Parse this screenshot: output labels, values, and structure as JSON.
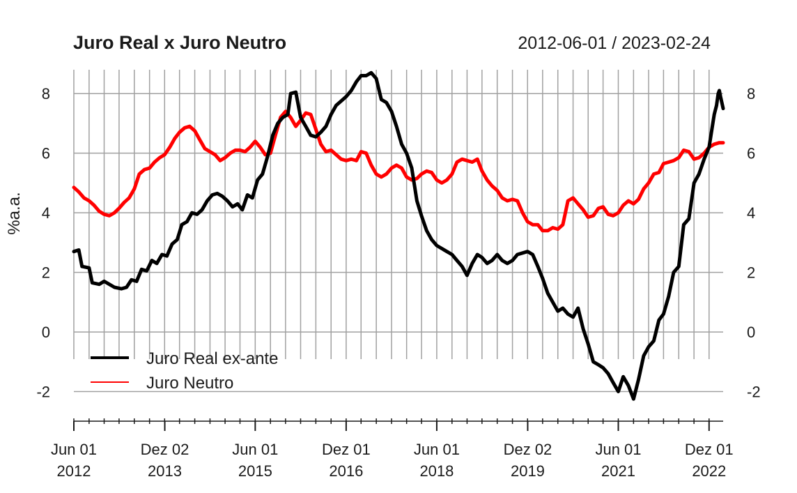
{
  "chart_data": {
    "type": "line",
    "title": "Juro Real x Juro Neutro",
    "date_range": "2012-06-01 / 2023-02-24",
    "ylabel": "%a.a.",
    "xlim": [
      "2012-06-01",
      "2023-02-24"
    ],
    "ylim": [
      -2.9,
      8.8
    ],
    "y_ticks": [
      -2,
      0,
      2,
      4,
      6,
      8
    ],
    "x_ticks": [
      {
        "date": "2012-06-01",
        "label": "Jun 01",
        "year": "2012"
      },
      {
        "date": "2013-12-02",
        "label": "Dez 02",
        "year": "2013"
      },
      {
        "date": "2015-06-01",
        "label": "Jun 01",
        "year": "2015"
      },
      {
        "date": "2016-12-01",
        "label": "Dez 01",
        "year": "2016"
      },
      {
        "date": "2018-06-01",
        "label": "Jun 01",
        "year": "2018"
      },
      {
        "date": "2019-12-02",
        "label": "Dez 02",
        "year": "2019"
      },
      {
        "date": "2021-06-01",
        "label": "Jun 01",
        "year": "2021"
      },
      {
        "date": "2022-12-01",
        "label": "Dez 01",
        "year": "2022"
      }
    ],
    "grid": true,
    "legend_position": "bottom-left",
    "series": [
      {
        "name": "Juro Real ex-ante",
        "color": "#000000",
        "points": [
          [
            "2012-06-01",
            2.7
          ],
          [
            "2012-07-01",
            2.75
          ],
          [
            "2012-07-20",
            2.2
          ],
          [
            "2012-09-01",
            2.15
          ],
          [
            "2012-09-20",
            1.65
          ],
          [
            "2012-11-01",
            1.6
          ],
          [
            "2012-12-01",
            1.7
          ],
          [
            "2013-01-01",
            1.6
          ],
          [
            "2013-02-01",
            1.5
          ],
          [
            "2013-03-15",
            1.45
          ],
          [
            "2013-04-15",
            1.5
          ],
          [
            "2013-05-15",
            1.75
          ],
          [
            "2013-06-15",
            1.7
          ],
          [
            "2013-07-15",
            2.1
          ],
          [
            "2013-08-15",
            2.05
          ],
          [
            "2013-09-15",
            2.4
          ],
          [
            "2013-10-15",
            2.3
          ],
          [
            "2013-11-15",
            2.6
          ],
          [
            "2013-12-15",
            2.55
          ],
          [
            "2014-01-15",
            2.95
          ],
          [
            "2014-02-15",
            3.1
          ],
          [
            "2014-03-15",
            3.6
          ],
          [
            "2014-04-15",
            3.7
          ],
          [
            "2014-05-15",
            4.0
          ],
          [
            "2014-06-15",
            3.95
          ],
          [
            "2014-07-15",
            4.1
          ],
          [
            "2014-08-15",
            4.4
          ],
          [
            "2014-09-15",
            4.6
          ],
          [
            "2014-10-15",
            4.65
          ],
          [
            "2014-11-15",
            4.55
          ],
          [
            "2014-12-15",
            4.4
          ],
          [
            "2015-01-15",
            4.2
          ],
          [
            "2015-02-15",
            4.3
          ],
          [
            "2015-03-15",
            4.1
          ],
          [
            "2015-04-15",
            4.6
          ],
          [
            "2015-05-15",
            4.5
          ],
          [
            "2015-06-15",
            5.1
          ],
          [
            "2015-07-15",
            5.3
          ],
          [
            "2015-08-15",
            5.9
          ],
          [
            "2015-09-15",
            6.6
          ],
          [
            "2015-10-15",
            7.0
          ],
          [
            "2015-11-15",
            7.2
          ],
          [
            "2015-12-15",
            7.3
          ],
          [
            "2016-01-01",
            8.0
          ],
          [
            "2016-02-01",
            8.05
          ],
          [
            "2016-03-01",
            7.2
          ],
          [
            "2016-04-01",
            6.9
          ],
          [
            "2016-05-01",
            6.6
          ],
          [
            "2016-06-01",
            6.55
          ],
          [
            "2016-07-01",
            6.7
          ],
          [
            "2016-08-01",
            6.9
          ],
          [
            "2016-09-01",
            7.3
          ],
          [
            "2016-10-01",
            7.6
          ],
          [
            "2016-11-01",
            7.75
          ],
          [
            "2016-12-01",
            7.9
          ],
          [
            "2017-01-01",
            8.1
          ],
          [
            "2017-02-01",
            8.4
          ],
          [
            "2017-03-01",
            8.6
          ],
          [
            "2017-04-01",
            8.6
          ],
          [
            "2017-05-01",
            8.7
          ],
          [
            "2017-06-01",
            8.5
          ],
          [
            "2017-07-01",
            7.8
          ],
          [
            "2017-08-01",
            7.7
          ],
          [
            "2017-09-01",
            7.4
          ],
          [
            "2017-10-01",
            6.9
          ],
          [
            "2017-11-01",
            6.3
          ],
          [
            "2017-12-01",
            6.0
          ],
          [
            "2018-01-01",
            5.5
          ],
          [
            "2018-02-01",
            4.4
          ],
          [
            "2018-03-01",
            3.9
          ],
          [
            "2018-04-01",
            3.4
          ],
          [
            "2018-05-01",
            3.1
          ],
          [
            "2018-06-01",
            2.9
          ],
          [
            "2018-07-01",
            2.8
          ],
          [
            "2018-08-01",
            2.7
          ],
          [
            "2018-09-01",
            2.6
          ],
          [
            "2018-10-01",
            2.4
          ],
          [
            "2018-11-01",
            2.2
          ],
          [
            "2018-12-01",
            1.9
          ],
          [
            "2019-01-01",
            2.3
          ],
          [
            "2019-02-01",
            2.6
          ],
          [
            "2019-03-01",
            2.5
          ],
          [
            "2019-04-01",
            2.3
          ],
          [
            "2019-05-01",
            2.4
          ],
          [
            "2019-06-01",
            2.6
          ],
          [
            "2019-07-01",
            2.4
          ],
          [
            "2019-08-01",
            2.3
          ],
          [
            "2019-09-01",
            2.4
          ],
          [
            "2019-10-01",
            2.6
          ],
          [
            "2019-11-01",
            2.65
          ],
          [
            "2019-12-01",
            2.7
          ],
          [
            "2020-01-01",
            2.6
          ],
          [
            "2020-02-01",
            2.2
          ],
          [
            "2020-03-01",
            1.8
          ],
          [
            "2020-04-01",
            1.3
          ],
          [
            "2020-05-01",
            1.0
          ],
          [
            "2020-06-01",
            0.7
          ],
          [
            "2020-07-01",
            0.8
          ],
          [
            "2020-08-01",
            0.6
          ],
          [
            "2020-09-01",
            0.5
          ],
          [
            "2020-10-01",
            0.8
          ],
          [
            "2020-11-01",
            0.1
          ],
          [
            "2020-12-01",
            -0.4
          ],
          [
            "2021-01-01",
            -1.0
          ],
          [
            "2021-02-01",
            -1.1
          ],
          [
            "2021-03-01",
            -1.2
          ],
          [
            "2021-04-01",
            -1.4
          ],
          [
            "2021-05-01",
            -1.7
          ],
          [
            "2021-06-01",
            -2.0
          ],
          [
            "2021-07-01",
            -1.5
          ],
          [
            "2021-08-01",
            -1.8
          ],
          [
            "2021-09-01",
            -2.25
          ],
          [
            "2021-10-01",
            -1.6
          ],
          [
            "2021-11-01",
            -0.8
          ],
          [
            "2021-12-01",
            -0.5
          ],
          [
            "2022-01-01",
            -0.3
          ],
          [
            "2022-02-01",
            0.4
          ],
          [
            "2022-03-01",
            0.6
          ],
          [
            "2022-04-01",
            1.2
          ],
          [
            "2022-05-01",
            2.0
          ],
          [
            "2022-06-01",
            2.2
          ],
          [
            "2022-07-01",
            3.6
          ],
          [
            "2022-08-01",
            3.8
          ],
          [
            "2022-09-01",
            5.0
          ],
          [
            "2022-10-01",
            5.3
          ],
          [
            "2022-11-01",
            5.8
          ],
          [
            "2022-12-01",
            6.2
          ],
          [
            "2023-01-01",
            7.3
          ],
          [
            "2023-01-15",
            7.6
          ],
          [
            "2023-01-25",
            8.0
          ],
          [
            "2023-02-01",
            8.1
          ],
          [
            "2023-02-08",
            7.9
          ],
          [
            "2023-02-16",
            7.7
          ],
          [
            "2023-02-24",
            7.5
          ]
        ]
      },
      {
        "name": "Juro Neutro",
        "color": "#ff0000",
        "points": [
          [
            "2012-06-01",
            4.85
          ],
          [
            "2012-07-01",
            4.7
          ],
          [
            "2012-08-01",
            4.5
          ],
          [
            "2012-09-01",
            4.4
          ],
          [
            "2012-10-01",
            4.25
          ],
          [
            "2012-11-01",
            4.05
          ],
          [
            "2012-12-01",
            3.95
          ],
          [
            "2013-01-01",
            3.9
          ],
          [
            "2013-02-01",
            4.0
          ],
          [
            "2013-03-01",
            4.15
          ],
          [
            "2013-04-01",
            4.35
          ],
          [
            "2013-05-01",
            4.5
          ],
          [
            "2013-06-01",
            4.8
          ],
          [
            "2013-07-01",
            5.3
          ],
          [
            "2013-08-01",
            5.45
          ],
          [
            "2013-09-01",
            5.5
          ],
          [
            "2013-10-01",
            5.7
          ],
          [
            "2013-11-01",
            5.85
          ],
          [
            "2013-12-01",
            5.95
          ],
          [
            "2014-01-01",
            6.2
          ],
          [
            "2014-02-01",
            6.5
          ],
          [
            "2014-03-01",
            6.7
          ],
          [
            "2014-04-01",
            6.85
          ],
          [
            "2014-05-01",
            6.9
          ],
          [
            "2014-06-01",
            6.75
          ],
          [
            "2014-07-01",
            6.45
          ],
          [
            "2014-08-01",
            6.15
          ],
          [
            "2014-09-01",
            6.05
          ],
          [
            "2014-10-01",
            5.95
          ],
          [
            "2014-11-01",
            5.75
          ],
          [
            "2014-12-01",
            5.85
          ],
          [
            "2015-01-01",
            6.0
          ],
          [
            "2015-02-01",
            6.1
          ],
          [
            "2015-03-01",
            6.1
          ],
          [
            "2015-04-01",
            6.05
          ],
          [
            "2015-05-01",
            6.2
          ],
          [
            "2015-06-01",
            6.4
          ],
          [
            "2015-07-01",
            6.2
          ],
          [
            "2015-08-01",
            5.95
          ],
          [
            "2015-09-01",
            6.0
          ],
          [
            "2015-10-01",
            6.6
          ],
          [
            "2015-11-01",
            7.2
          ],
          [
            "2015-12-01",
            7.4
          ],
          [
            "2016-01-01",
            7.2
          ],
          [
            "2016-02-01",
            6.9
          ],
          [
            "2016-03-01",
            7.1
          ],
          [
            "2016-04-01",
            7.35
          ],
          [
            "2016-05-01",
            7.3
          ],
          [
            "2016-06-01",
            6.8
          ],
          [
            "2016-07-01",
            6.3
          ],
          [
            "2016-08-01",
            6.05
          ],
          [
            "2016-09-01",
            6.1
          ],
          [
            "2016-10-01",
            5.95
          ],
          [
            "2016-11-01",
            5.8
          ],
          [
            "2016-12-01",
            5.75
          ],
          [
            "2017-01-01",
            5.8
          ],
          [
            "2017-02-01",
            5.75
          ],
          [
            "2017-03-01",
            6.05
          ],
          [
            "2017-04-01",
            6.0
          ],
          [
            "2017-05-01",
            5.6
          ],
          [
            "2017-06-01",
            5.3
          ],
          [
            "2017-07-01",
            5.2
          ],
          [
            "2017-08-01",
            5.3
          ],
          [
            "2017-09-01",
            5.5
          ],
          [
            "2017-10-01",
            5.6
          ],
          [
            "2017-11-01",
            5.5
          ],
          [
            "2017-12-01",
            5.2
          ],
          [
            "2018-01-01",
            5.1
          ],
          [
            "2018-02-01",
            5.15
          ],
          [
            "2018-03-01",
            5.3
          ],
          [
            "2018-04-01",
            5.4
          ],
          [
            "2018-05-01",
            5.35
          ],
          [
            "2018-06-01",
            5.1
          ],
          [
            "2018-07-01",
            5.0
          ],
          [
            "2018-08-01",
            5.1
          ],
          [
            "2018-09-01",
            5.3
          ],
          [
            "2018-10-01",
            5.7
          ],
          [
            "2018-11-01",
            5.8
          ],
          [
            "2018-12-01",
            5.75
          ],
          [
            "2019-01-01",
            5.7
          ],
          [
            "2019-02-01",
            5.8
          ],
          [
            "2019-03-01",
            5.4
          ],
          [
            "2019-04-01",
            5.1
          ],
          [
            "2019-05-01",
            4.9
          ],
          [
            "2019-06-01",
            4.75
          ],
          [
            "2019-07-01",
            4.5
          ],
          [
            "2019-08-01",
            4.4
          ],
          [
            "2019-09-01",
            4.45
          ],
          [
            "2019-10-01",
            4.4
          ],
          [
            "2019-11-01",
            4.0
          ],
          [
            "2019-12-01",
            3.7
          ],
          [
            "2020-01-01",
            3.6
          ],
          [
            "2020-02-01",
            3.6
          ],
          [
            "2020-03-01",
            3.4
          ],
          [
            "2020-04-01",
            3.4
          ],
          [
            "2020-05-01",
            3.5
          ],
          [
            "2020-06-01",
            3.45
          ],
          [
            "2020-07-01",
            3.6
          ],
          [
            "2020-08-01",
            4.4
          ],
          [
            "2020-09-01",
            4.5
          ],
          [
            "2020-10-01",
            4.3
          ],
          [
            "2020-11-01",
            4.1
          ],
          [
            "2020-12-01",
            3.85
          ],
          [
            "2021-01-01",
            3.9
          ],
          [
            "2021-02-01",
            4.15
          ],
          [
            "2021-03-01",
            4.2
          ],
          [
            "2021-04-01",
            3.95
          ],
          [
            "2021-05-01",
            3.9
          ],
          [
            "2021-06-01",
            4.0
          ],
          [
            "2021-07-01",
            4.25
          ],
          [
            "2021-08-01",
            4.4
          ],
          [
            "2021-09-01",
            4.3
          ],
          [
            "2021-10-01",
            4.45
          ],
          [
            "2021-11-01",
            4.8
          ],
          [
            "2021-12-01",
            5.0
          ],
          [
            "2022-01-01",
            5.3
          ],
          [
            "2022-02-01",
            5.35
          ],
          [
            "2022-03-01",
            5.65
          ],
          [
            "2022-04-01",
            5.7
          ],
          [
            "2022-05-01",
            5.75
          ],
          [
            "2022-06-01",
            5.85
          ],
          [
            "2022-07-01",
            6.1
          ],
          [
            "2022-08-01",
            6.05
          ],
          [
            "2022-09-01",
            5.8
          ],
          [
            "2022-10-01",
            5.85
          ],
          [
            "2022-11-01",
            6.0
          ],
          [
            "2022-12-01",
            6.2
          ],
          [
            "2023-01-01",
            6.3
          ],
          [
            "2023-02-01",
            6.35
          ],
          [
            "2023-02-24",
            6.35
          ]
        ]
      }
    ]
  }
}
